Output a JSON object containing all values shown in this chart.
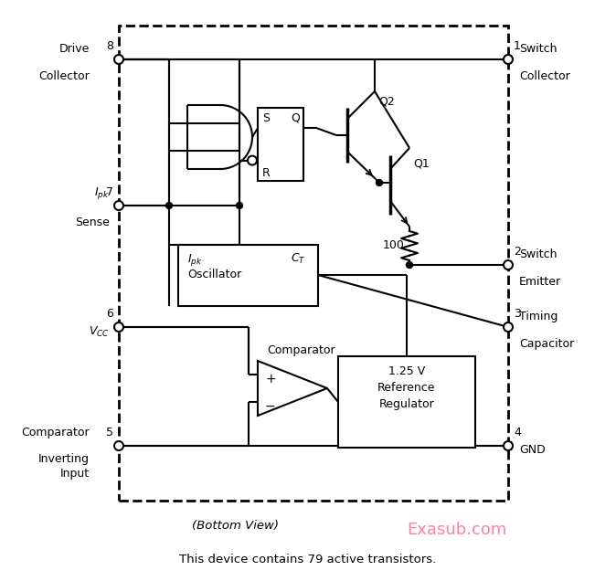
{
  "bg_color": "#ffffff",
  "title": "This device contains 79 active transistors.",
  "watermark": "Exasub.com",
  "bottom_view": "(Bottom View)",
  "pink_color": "#ff80a0"
}
